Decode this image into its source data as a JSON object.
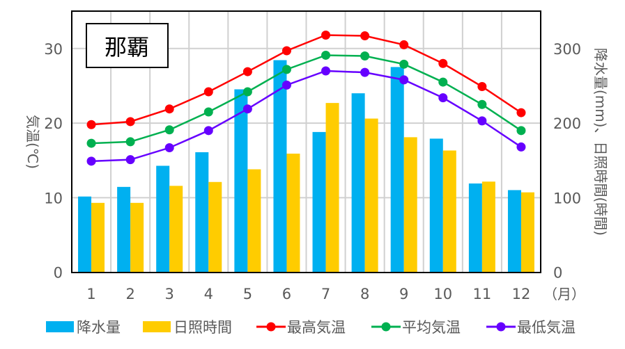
{
  "chart_data": {
    "type": "bar+line",
    "title": "那覇",
    "categories": [
      "1",
      "2",
      "3",
      "4",
      "5",
      "6",
      "7",
      "8",
      "9",
      "10",
      "11",
      "12"
    ],
    "x_unit_label": "（月）",
    "ylabel_left": "気温(℃)",
    "ylabel_right": "降水量(mm)、日照時間(時間)",
    "ylim_left": [
      0,
      33
    ],
    "ylim_right": [
      0,
      330
    ],
    "yticks_left": [
      0,
      10,
      20,
      30
    ],
    "yticks_right": [
      0,
      100,
      200,
      300
    ],
    "grid": true,
    "legend_position": "bottom",
    "bar_series": [
      {
        "name": "降水量",
        "axis": "right",
        "color": "#00B0F0",
        "values": [
          101.6,
          114.5,
          142.8,
          161.0,
          245.3,
          284.4,
          188.1,
          240.0,
          275.2,
          179.2,
          119.1,
          110.2
        ]
      },
      {
        "name": "日照時間",
        "axis": "right",
        "color": "#FFCC00",
        "values": [
          93.1,
          93.1,
          115.9,
          121.1,
          138.1,
          159.1,
          227.0,
          206.1,
          181.1,
          163.3,
          121.6,
          107.2
        ]
      }
    ],
    "line_series": [
      {
        "name": "最高気温",
        "axis": "left",
        "color": "#FF0000",
        "values": [
          19.8,
          20.2,
          21.9,
          24.2,
          26.9,
          29.7,
          31.8,
          31.7,
          30.5,
          28.0,
          24.9,
          21.4
        ]
      },
      {
        "name": "平均気温",
        "axis": "left",
        "color": "#00B050",
        "values": [
          17.3,
          17.5,
          19.1,
          21.5,
          24.2,
          27.2,
          29.1,
          29.0,
          27.9,
          25.5,
          22.5,
          19.0
        ]
      },
      {
        "name": "最低気温",
        "axis": "left",
        "color": "#6600FF",
        "values": [
          14.9,
          15.1,
          16.7,
          19.0,
          21.9,
          25.1,
          27.0,
          26.8,
          25.8,
          23.4,
          20.3,
          16.8
        ]
      }
    ]
  }
}
